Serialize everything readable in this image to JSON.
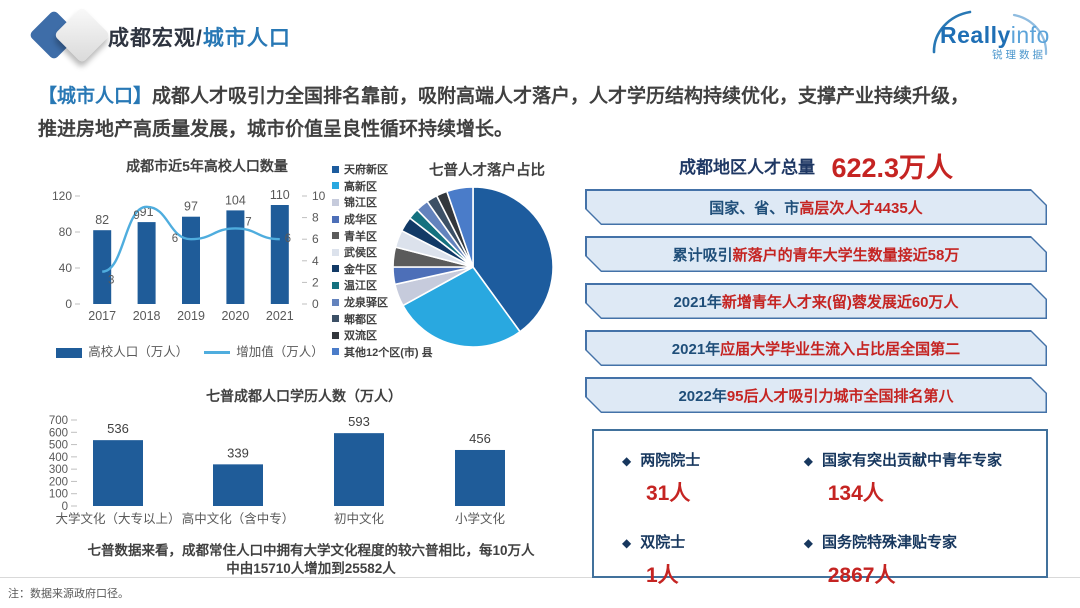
{
  "header": {
    "title_prefix": "成都宏观/",
    "title_suffix": "城市人口",
    "brand_bold": "Really",
    "brand_light": "info",
    "brand_sub": "锐理数据"
  },
  "intro": {
    "tag": "【城市人口】",
    "line1": "成都人才吸引力全国排名靠前，吸附高端人才落户，人才学历结构持续优化，支撑产业持续升级，",
    "line2": "推进房地产高质量发展，城市价值呈良性循环持续增长。"
  },
  "chart_data": [
    {
      "id": "college_population",
      "type": "bar+line",
      "title": "成都市近5年高校人口数量",
      "categories": [
        "2017",
        "2018",
        "2019",
        "2020",
        "2021"
      ],
      "series": [
        {
          "name": "高校人口（万人）",
          "type": "bar",
          "axis": "left",
          "color": "#1F5C99",
          "values": [
            82,
            91,
            97,
            104,
            110
          ]
        },
        {
          "name": "增加值（万人）",
          "type": "line",
          "axis": "right",
          "color": "#4FADDE",
          "values": [
            3,
            9,
            6,
            7,
            6
          ]
        }
      ],
      "left_axis": {
        "min": 0,
        "max": 120,
        "ticks": [
          0,
          40,
          80,
          120
        ]
      },
      "right_axis": {
        "min": 0,
        "max": 10,
        "ticks": [
          0,
          2,
          4,
          6,
          8,
          10
        ]
      },
      "legend_position": "bottom",
      "grid": false
    },
    {
      "id": "talent_settlement_pie",
      "type": "pie",
      "title": "七普人才落户占比",
      "legend_position": "left",
      "slices": [
        {
          "label": "天府新区",
          "value": 40,
          "color": "#1D5C9E"
        },
        {
          "label": "高新区",
          "value": 27,
          "color": "#29A8E0"
        },
        {
          "label": "锦江区",
          "value": 4.5,
          "color": "#C6CBDC"
        },
        {
          "label": "成华区",
          "value": 3.5,
          "color": "#4D6FB8"
        },
        {
          "label": "青羊区",
          "value": 4,
          "color": "#5B5B5B"
        },
        {
          "label": "武侯区",
          "value": 3.5,
          "color": "#DCE2EC"
        },
        {
          "label": "金牛区",
          "value": 3,
          "color": "#123A66"
        },
        {
          "label": "温江区",
          "value": 2.2,
          "color": "#14717F"
        },
        {
          "label": "龙泉驿区",
          "value": 2.6,
          "color": "#6383BD"
        },
        {
          "label": "郫都区",
          "value": 2.2,
          "color": "#3C5066"
        },
        {
          "label": "双流区",
          "value": 2.2,
          "color": "#33373C"
        },
        {
          "label": "其他12个区(市) 县",
          "value": 5.3,
          "color": "#4A7CC9"
        }
      ]
    },
    {
      "id": "education_population",
      "type": "bar",
      "title": "七普成都人口学历人数（万人）",
      "categories": [
        "大学文化（大专以上）",
        "高中文化（含中专）",
        "初中文化",
        "小学文化"
      ],
      "values": [
        536,
        339,
        593,
        456
      ],
      "bar_color": "#1F5C99",
      "ylim": [
        0,
        700
      ],
      "yticks": [
        0,
        100,
        200,
        300,
        400,
        500,
        600,
        700
      ],
      "grid": false
    }
  ],
  "right_panel": {
    "total_label": "成都地区人才总量",
    "total_value": "622.3万人",
    "boxes": [
      {
        "prefix": "国家、省、市",
        "highlight": "高层次人才4435人"
      },
      {
        "prefix": "累计吸引",
        "highlight": "新落户的青年大学生数量接近58万"
      },
      {
        "prefix": "2021年",
        "highlight": "新增青年人才来(留)蓉发展近60万人"
      },
      {
        "prefix": "2021年",
        "highlight": "应届大学毕业生流入占比居全国第二"
      },
      {
        "prefix": "2022年",
        "highlight": "95后人才吸引力城市全国排名第八"
      }
    ],
    "experts": [
      {
        "label": "两院院士",
        "value": "31人"
      },
      {
        "label": "国家有突出贡献中青年专家",
        "value": "134人"
      },
      {
        "label": "双院士",
        "value": "1人"
      },
      {
        "label": "国务院特殊津贴专家",
        "value": "2867人"
      }
    ]
  },
  "summary": {
    "line1": "七普数据来看，成都常住人口中拥有大学文化程度的较六普相比，每10万人",
    "line2": "中由15710人增加到25582人"
  },
  "footnote": "注：数据来源政府口径。",
  "colors": {
    "accent_blue": "#2878B5",
    "navy": "#1F4E79",
    "dark_navy": "#17375E",
    "red": "#C52422",
    "bar_blue": "#1F5C99",
    "line_blue": "#4FADDE",
    "box_fill": "#DEE9F5",
    "box_border": "#4472A8",
    "panel_border": "#41719C",
    "axis_gray": "#595959"
  }
}
